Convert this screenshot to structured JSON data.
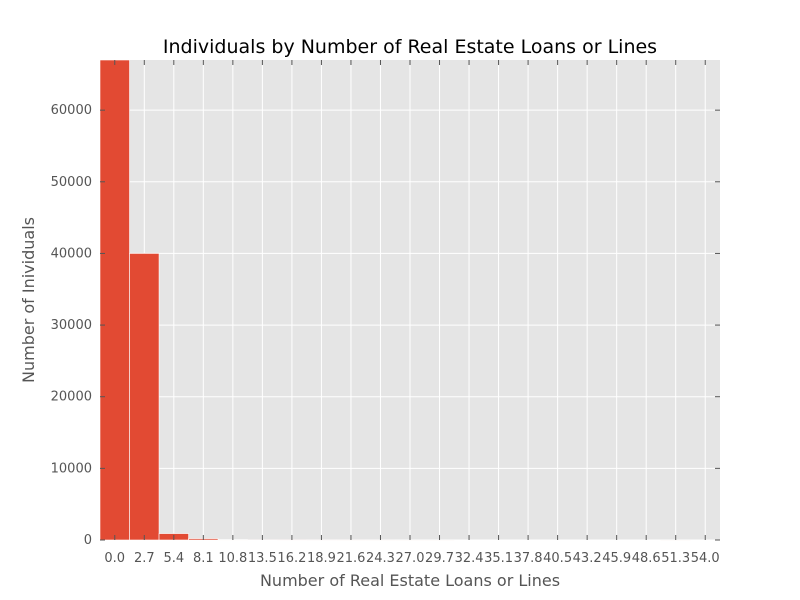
{
  "chart_data": {
    "type": "bar",
    "title": "Individuals by Number of Real Estate Loans or Lines",
    "xlabel": "Number of Real Estate Loans or Lines",
    "ylabel": "Number of Inividuals",
    "x_ticks": [
      "0.0",
      "2.7",
      "5.4",
      "8.1",
      "10.8",
      "13.5",
      "16.2",
      "18.9",
      "21.6",
      "24.3",
      "27.0",
      "29.7",
      "32.4",
      "35.1",
      "37.8",
      "40.5",
      "43.2",
      "45.9",
      "48.6",
      "51.3",
      "54.0"
    ],
    "y_ticks": [
      "0",
      "10000",
      "20000",
      "30000",
      "40000",
      "50000",
      "60000"
    ],
    "x_tick_values": [
      0.0,
      2.7,
      5.4,
      8.1,
      10.8,
      13.5,
      16.2,
      18.9,
      21.6,
      24.3,
      27.0,
      29.7,
      32.4,
      35.1,
      37.8,
      40.5,
      43.2,
      45.9,
      48.6,
      51.3,
      54.0
    ],
    "y_tick_values": [
      0,
      10000,
      20000,
      30000,
      40000,
      50000,
      60000
    ],
    "bin_width": 2.7,
    "bins": [
      0.0,
      2.7,
      5.4,
      8.1,
      10.8,
      13.5,
      16.2,
      18.9,
      21.6,
      24.3,
      27.0,
      29.7,
      32.4,
      35.1,
      37.8,
      40.5,
      43.2,
      45.9,
      48.6,
      51.3
    ],
    "values": [
      67500,
      40000,
      900,
      200,
      60,
      20,
      10,
      5,
      3,
      2,
      1,
      1,
      0,
      0,
      0,
      0,
      0,
      0,
      0,
      1
    ],
    "xlim": [
      -1.35,
      55.35
    ],
    "ylim": [
      0,
      67000
    ],
    "grid": true,
    "colors": {
      "bar": "#E24A33",
      "plot_bg": "#E5E5E5",
      "grid": "#FFFFFF",
      "text": "#555555"
    }
  }
}
